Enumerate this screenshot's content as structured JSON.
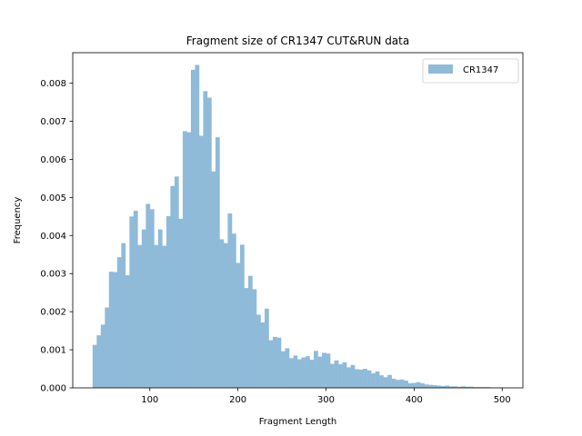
{
  "chart_data": {
    "type": "bar",
    "title": "Fragment size of CR1347 CUT&RUN data",
    "xlabel": "Fragment Length",
    "ylabel": "Frequency",
    "xlim": [
      12.5,
      523.5
    ],
    "ylim": [
      0,
      0.0088
    ],
    "xticks": [
      100,
      200,
      300,
      400,
      500
    ],
    "yticks": [
      0.0,
      0.001,
      0.002,
      0.003,
      0.004,
      0.005,
      0.006,
      0.007,
      0.008
    ],
    "ytick_labels": [
      "0.000",
      "0.001",
      "0.002",
      "0.003",
      "0.004",
      "0.005",
      "0.006",
      "0.007",
      "0.008"
    ],
    "legend": {
      "position": "top-right",
      "entries": [
        "CR1347"
      ]
    },
    "grid": false,
    "bar_color": "#8fbbd9",
    "bin_start": 35,
    "bin_width": 4.65,
    "series": [
      {
        "name": "CR1347",
        "values": [
          0.00113,
          0.00138,
          0.00166,
          0.00211,
          0.00305,
          0.00304,
          0.00343,
          0.0038,
          0.00296,
          0.0045,
          0.00465,
          0.00375,
          0.00416,
          0.00483,
          0.00469,
          0.00375,
          0.00416,
          0.00373,
          0.00451,
          0.0053,
          0.00555,
          0.00444,
          0.00674,
          0.00671,
          0.00835,
          0.00848,
          0.00662,
          0.00779,
          0.00762,
          0.00568,
          0.00658,
          0.0039,
          0.0038,
          0.00458,
          0.00405,
          0.00328,
          0.00376,
          0.00262,
          0.00294,
          0.00259,
          0.00192,
          0.00172,
          0.00208,
          0.00125,
          0.00134,
          0.00132,
          0.00096,
          0.00104,
          0.00078,
          0.00085,
          0.00075,
          0.0008,
          0.00083,
          0.00074,
          0.00097,
          0.00082,
          0.00092,
          0.0009,
          0.00063,
          0.00072,
          0.00062,
          0.00067,
          0.00054,
          0.0006,
          0.00049,
          0.00048,
          0.0005,
          0.00046,
          0.00038,
          0.00043,
          0.00033,
          0.00028,
          0.00034,
          0.00024,
          0.00021,
          0.00022,
          0.00019,
          0.00012,
          0.00013,
          0.00015,
          0.00012,
          9e-05,
          8e-05,
          7e-05,
          6e-05,
          5e-05,
          6e-05,
          4e-05,
          4e-05,
          3e-05,
          4e-05,
          3e-05,
          3e-05,
          2e-05,
          2e-05,
          2e-05,
          2e-05,
          1e-05,
          1e-05,
          1e-05
        ]
      }
    ]
  }
}
